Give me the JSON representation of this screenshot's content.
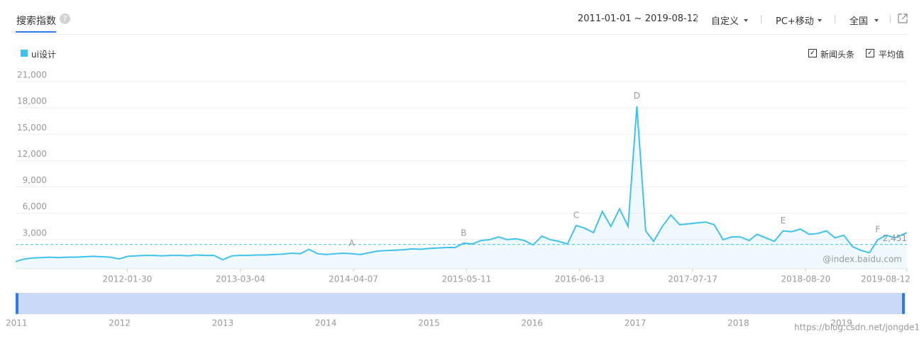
{
  "header": {
    "tab": "搜索指数",
    "help": "?",
    "date_range": "2011-01-01 ~ 2019-08-12",
    "mode": "自定义",
    "device": "PC+移动",
    "region": "全国"
  },
  "options": [
    "新闻头条",
    "平均值"
  ],
  "chart_data": {
    "type": "line",
    "x": [
      "2011-01-01",
      "2011-02-01",
      "2011-03-01",
      "2011-04-01",
      "2011-05-01",
      "2011-06-01",
      "2011-07-01",
      "2011-08-01",
      "2011-09-01",
      "2011-10-01",
      "2011-11-01",
      "2011-12-01",
      "2012-01-01",
      "2012-02-01",
      "2012-03-01",
      "2012-04-01",
      "2012-05-01",
      "2012-06-01",
      "2012-07-01",
      "2012-08-01",
      "2012-09-01",
      "2012-10-01",
      "2012-11-01",
      "2012-12-01",
      "2013-01-01",
      "2013-02-01",
      "2013-03-01",
      "2013-04-01",
      "2013-05-01",
      "2013-06-01",
      "2013-07-01",
      "2013-08-01",
      "2013-09-01",
      "2013-10-01",
      "2013-11-01",
      "2013-12-01",
      "2014-01-01",
      "2014-02-01",
      "2014-03-01",
      "2014-04-01",
      "2014-05-01",
      "2014-06-01",
      "2014-07-01",
      "2014-08-01",
      "2014-09-01",
      "2014-10-01",
      "2014-11-01",
      "2014-12-01",
      "2015-01-01",
      "2015-02-01",
      "2015-03-01",
      "2015-04-01",
      "2015-05-01",
      "2015-06-01",
      "2015-07-01",
      "2015-08-01",
      "2015-09-01",
      "2015-10-01",
      "2015-11-01",
      "2015-12-01",
      "2016-01-01",
      "2016-02-01",
      "2016-03-01",
      "2016-04-01",
      "2016-05-01",
      "2016-06-01",
      "2016-07-01",
      "2016-08-01",
      "2016-09-01",
      "2016-10-01",
      "2016-11-01",
      "2016-12-01",
      "2017-01-01",
      "2017-02-01",
      "2017-03-01",
      "2017-04-01",
      "2017-05-01",
      "2017-06-01",
      "2017-07-01",
      "2017-08-01",
      "2017-09-01",
      "2017-10-01",
      "2017-11-01",
      "2017-12-01",
      "2018-01-01",
      "2018-02-01",
      "2018-03-01",
      "2018-04-01",
      "2018-05-01",
      "2018-06-01",
      "2018-07-01",
      "2018-08-01",
      "2018-09-01",
      "2018-10-01",
      "2018-11-01",
      "2018-12-01",
      "2019-01-01",
      "2019-02-01",
      "2019-03-01",
      "2019-04-01",
      "2019-05-01",
      "2019-06-01",
      "2019-07-01",
      "2019-08-12"
    ],
    "series": [
      {
        "name": "ui设计",
        "color": "#3fc3ee",
        "values": [
          500,
          800,
          900,
          950,
          1000,
          950,
          1000,
          1000,
          1050,
          1100,
          1050,
          1000,
          800,
          1100,
          1150,
          1200,
          1200,
          1150,
          1200,
          1200,
          1150,
          1250,
          1200,
          1200,
          700,
          1150,
          1200,
          1200,
          1250,
          1250,
          1300,
          1350,
          1450,
          1400,
          1900,
          1400,
          1300,
          1400,
          1450,
          1400,
          1300,
          1500,
          1700,
          1750,
          1800,
          1850,
          1950,
          1900,
          2000,
          2050,
          2100,
          2100,
          2600,
          2500,
          2900,
          3000,
          3300,
          3000,
          3100,
          2900,
          2400,
          3400,
          3000,
          2800,
          2500,
          4600,
          4300,
          3800,
          6200,
          4500,
          6500,
          4500,
          18200,
          4000,
          2800,
          4500,
          5800,
          4700,
          4800,
          4900,
          5000,
          4700,
          3000,
          3300,
          3300,
          2900,
          3600,
          3200,
          2800,
          4000,
          3900,
          4200,
          3600,
          3700,
          4000,
          3200,
          3500,
          2200,
          1800,
          1500,
          3000,
          3500,
          3200,
          3800
        ]
      }
    ],
    "xlim": [
      "2011-01-01",
      "2019-08-12"
    ],
    "xticks": [
      "2012-01-30",
      "2013-03-04",
      "2014-04-07",
      "2015-05-11",
      "2016-06-13",
      "2017-07-17",
      "2018-08-20",
      "2019-08-12"
    ],
    "ylim": [
      0,
      21000
    ],
    "yticks": [
      {
        "value": 3000,
        "label": "3,000"
      },
      {
        "value": 6000,
        "label": "6,000"
      },
      {
        "value": 9000,
        "label": "9,000"
      },
      {
        "value": 12000,
        "label": "12,000"
      },
      {
        "value": 15000,
        "label": "15,000"
      },
      {
        "value": 18000,
        "label": "18,000"
      },
      {
        "value": 21000,
        "label": "21,000"
      }
    ],
    "grid": true,
    "average": {
      "value": 2451,
      "label": "2,451"
    },
    "annotations": [
      {
        "text": "A",
        "x": "2014-04-01"
      },
      {
        "text": "B",
        "x": "2015-05-01"
      },
      {
        "text": "C",
        "x": "2016-06-01"
      },
      {
        "text": "D",
        "x": "2017-01-01"
      },
      {
        "text": "E",
        "x": "2018-06-01"
      },
      {
        "text": "F",
        "x": "2019-05-01"
      }
    ],
    "watermark": "@index.baidu.com"
  },
  "navigator": {
    "years": [
      2011,
      2012,
      2013,
      2014,
      2015,
      2016,
      2017,
      2018,
      2019
    ]
  },
  "footer_watermark": "https://blog.csdn.net/jongde1"
}
